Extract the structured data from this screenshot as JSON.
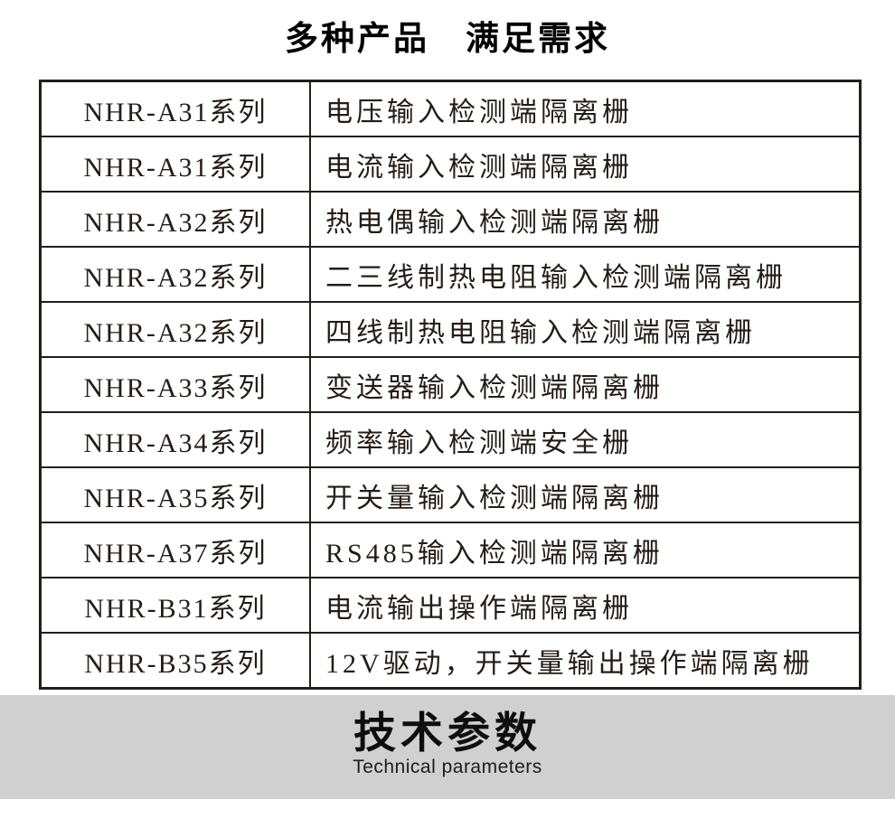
{
  "title": "多种产品　满足需求",
  "table": {
    "rows": [
      {
        "series": "NHR-A31系列",
        "description": "电压输入检测端隔离栅"
      },
      {
        "series": "NHR-A31系列",
        "description": "电流输入检测端隔离栅"
      },
      {
        "series": "NHR-A32系列",
        "description": "热电偶输入检测端隔离栅"
      },
      {
        "series": "NHR-A32系列",
        "description": "二三线制热电阻输入检测端隔离栅"
      },
      {
        "series": "NHR-A32系列",
        "description": "四线制热电阻输入检测端隔离栅"
      },
      {
        "series": "NHR-A33系列",
        "description": "变送器输入检测端隔离栅"
      },
      {
        "series": "NHR-A34系列",
        "description": "频率输入检测端安全栅"
      },
      {
        "series": "NHR-A35系列",
        "description": "开关量输入检测端隔离栅"
      },
      {
        "series": "NHR-A37系列",
        "description": "RS485输入检测端隔离栅"
      },
      {
        "series": "NHR-B31系列",
        "description": "电流输出操作端隔离栅"
      },
      {
        "series": "NHR-B35系列",
        "description": "12V驱动，开关量输出操作端隔离栅"
      }
    ]
  },
  "section": {
    "title": "技术参数",
    "subtitle": "Technical parameters"
  },
  "colors": {
    "banner_background": "#d1d0d0",
    "table_border": "#241e18",
    "text": "#241c16",
    "title_text": "#000000"
  }
}
